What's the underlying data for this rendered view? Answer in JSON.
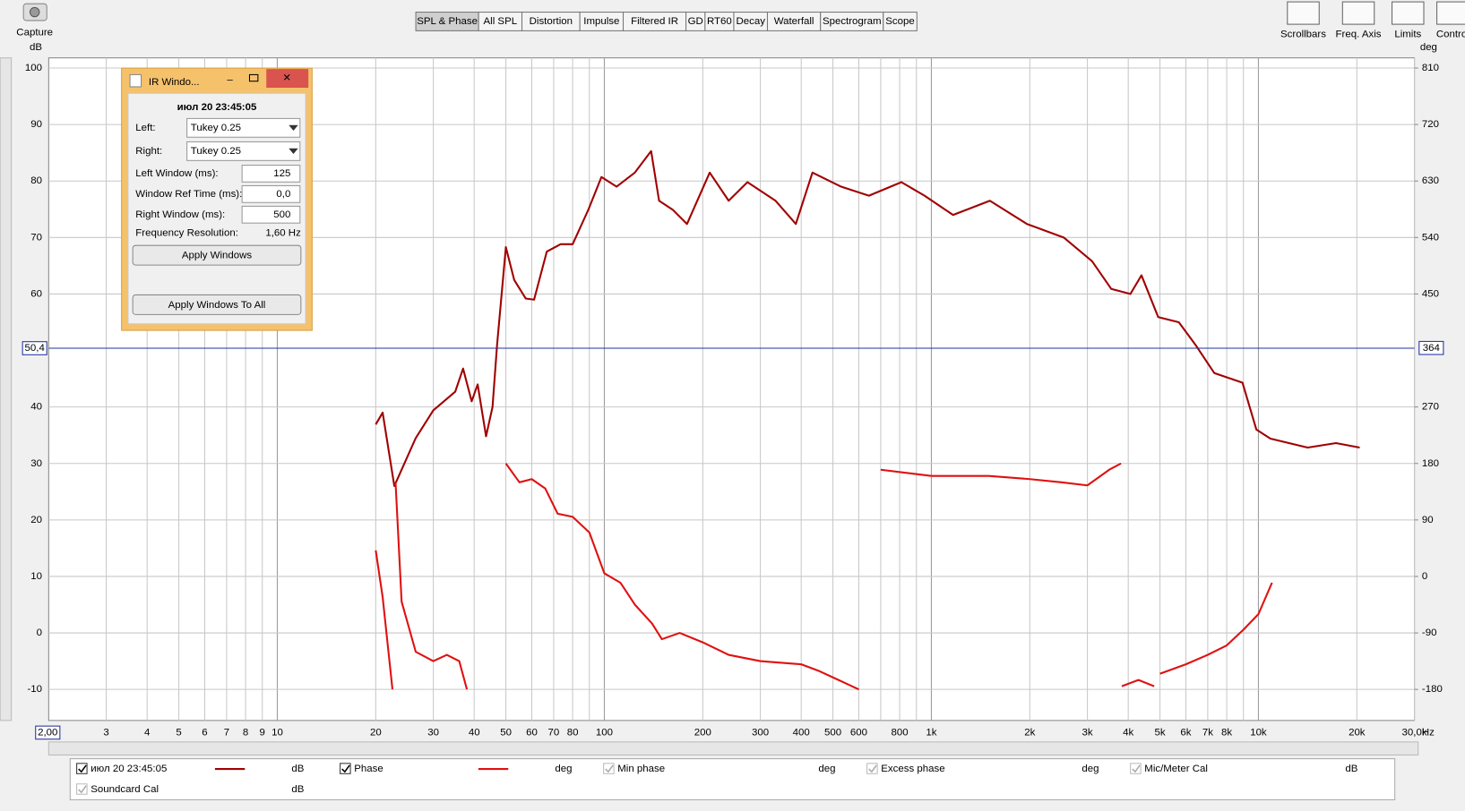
{
  "toolbar": {
    "capture": "Capture",
    "tabs": [
      "SPL & Phase",
      "All SPL",
      "Distortion",
      "Impulse",
      "Filtered IR",
      "GD",
      "RT60",
      "Decay",
      "Waterfall",
      "Spectrogram",
      "Scope"
    ],
    "tools": [
      "Scrollbars",
      "Freq. Axis",
      "Limits",
      "Control"
    ]
  },
  "ir_window": {
    "title": "IR Windo...",
    "measurement": "июл 20 23:45:05",
    "fields": [
      {
        "label": "Left:",
        "value": "Tukey 0.25"
      },
      {
        "label": "Right:",
        "value": "Tukey 0.25"
      },
      {
        "label": "Left Window (ms):",
        "value": "125"
      },
      {
        "label": "Window Ref Time (ms):",
        "value": "0,0"
      },
      {
        "label": "Right Window (ms):",
        "value": "500"
      }
    ],
    "resolution": {
      "label": "Frequency Resolution:",
      "value": "1,60 Hz"
    },
    "buttons": [
      "Apply Windows",
      "Apply Windows To All"
    ]
  },
  "chart_data": {
    "type": "line",
    "xscale": "log",
    "grid": true,
    "y_unit": "dB",
    "y2_unit": "deg",
    "x_unit": "Hz",
    "xlim": [
      2,
      30000
    ],
    "ylim": [
      -15.5,
      101.8
    ],
    "y2lim": [
      -229.5,
      826.2
    ],
    "xticks": [
      3,
      4,
      5,
      6,
      7,
      8,
      9,
      10,
      20,
      30,
      40,
      50,
      60,
      70,
      80,
      100,
      200,
      300,
      400,
      500,
      600,
      800,
      {
        "value": 1000,
        "label": "1k"
      },
      {
        "value": 2000,
        "label": "2k"
      },
      {
        "value": 3000,
        "label": "3k"
      },
      {
        "value": 4000,
        "label": "4k"
      },
      {
        "value": 5000,
        "label": "5k"
      },
      {
        "value": 6000,
        "label": "6k"
      },
      {
        "value": 7000,
        "label": "7k"
      },
      {
        "value": 8000,
        "label": "8k"
      },
      {
        "value": 10000,
        "label": "10k"
      },
      {
        "value": 20000,
        "label": "20k"
      },
      {
        "value": 30000,
        "label": "30,0k"
      }
    ],
    "x_minor_ticks": [
      90,
      700,
      900,
      9000
    ],
    "yticks": [
      100,
      90,
      80,
      70,
      60,
      40,
      30,
      20,
      10,
      0,
      -10
    ],
    "y2ticks": [
      810,
      720,
      630,
      540,
      450,
      270,
      180,
      90,
      0,
      -90,
      -180
    ],
    "cursor": {
      "x": {
        "value": 2,
        "label": "2,00"
      },
      "y": {
        "value": 50.4,
        "label": "50,4"
      },
      "y2": 364
    },
    "series": [
      {
        "name": "июл 20 23:45:05",
        "color": "#a00000",
        "unit": "dB",
        "x": [
          20,
          21,
          22.8,
          26.5,
          30,
          35,
          37,
          39.3,
          41,
          43.5,
          45.5,
          47,
          50,
          53,
          57.5,
          61,
          66.7,
          73.5,
          80,
          89.5,
          98,
          109,
          124,
          139,
          147,
          162,
          179,
          210,
          240,
          274,
          334,
          385,
          433,
          530,
          644,
          810,
          953,
          1165,
          1510,
          1960,
          2540,
          3100,
          3550,
          4060,
          4390,
          4940,
          5710,
          6420,
          7330,
          8940,
          9860,
          10880,
          12400,
          14150,
          17260,
          20400
        ],
        "values": [
          36.9,
          39,
          26,
          34.5,
          39.4,
          42.7,
          46.8,
          41,
          44,
          34.8,
          40,
          51,
          68.3,
          62.5,
          59.2,
          59,
          67.5,
          68.8,
          68.8,
          75,
          80.7,
          79,
          81.5,
          85.3,
          76.5,
          74.9,
          72.4,
          81.5,
          76.5,
          79.8,
          76.5,
          72.4,
          81.5,
          79,
          77.4,
          79.8,
          77.4,
          74,
          76.5,
          72.4,
          70,
          65.8,
          60.9,
          60,
          63.3,
          55.9,
          55,
          51,
          46,
          44.3,
          36,
          34.4,
          33.6,
          32.8,
          33.6,
          32.8
        ]
      },
      {
        "name": "Phase",
        "color": "#e01010",
        "unit": "deg",
        "axis": "y2",
        "x": [
          20,
          21,
          22.5,
          22.7,
          23,
          24,
          26.5,
          30,
          33,
          36,
          38,
          44,
          50,
          55,
          60,
          66,
          72,
          80,
          90,
          100,
          112,
          124,
          140,
          150,
          170,
          200,
          240,
          300,
          400,
          450,
          520,
          600,
          650,
          700,
          1000,
          1500,
          2000,
          2500,
          3000,
          3500,
          3800,
          3810,
          3820,
          4300,
          4800,
          4900,
          5000,
          6000,
          7000,
          8000,
          9000,
          10000,
          11000
        ],
        "values": [
          41.5,
          -33,
          -180,
          null,
          150,
          -40,
          -120,
          -135,
          -125,
          -135,
          -180,
          null,
          180,
          150,
          155,
          140,
          100,
          95,
          70,
          5,
          -10,
          -45,
          -75,
          -100,
          -90,
          -105,
          -125,
          -135,
          -140,
          -150,
          -165,
          -180,
          null,
          170,
          160,
          160,
          155,
          150,
          145,
          170,
          180,
          null,
          -175,
          -165,
          -175,
          null,
          -155,
          -140,
          -125,
          -110,
          -85,
          -60,
          -10
        ]
      }
    ]
  },
  "legend": [
    {
      "name": "Min phase",
      "unit": "deg"
    },
    {
      "name": "Excess phase",
      "unit": "deg"
    },
    {
      "name": "Mic/Meter Cal",
      "unit": "dB"
    },
    {
      "name": "Soundcard Cal",
      "unit": "dB"
    }
  ]
}
